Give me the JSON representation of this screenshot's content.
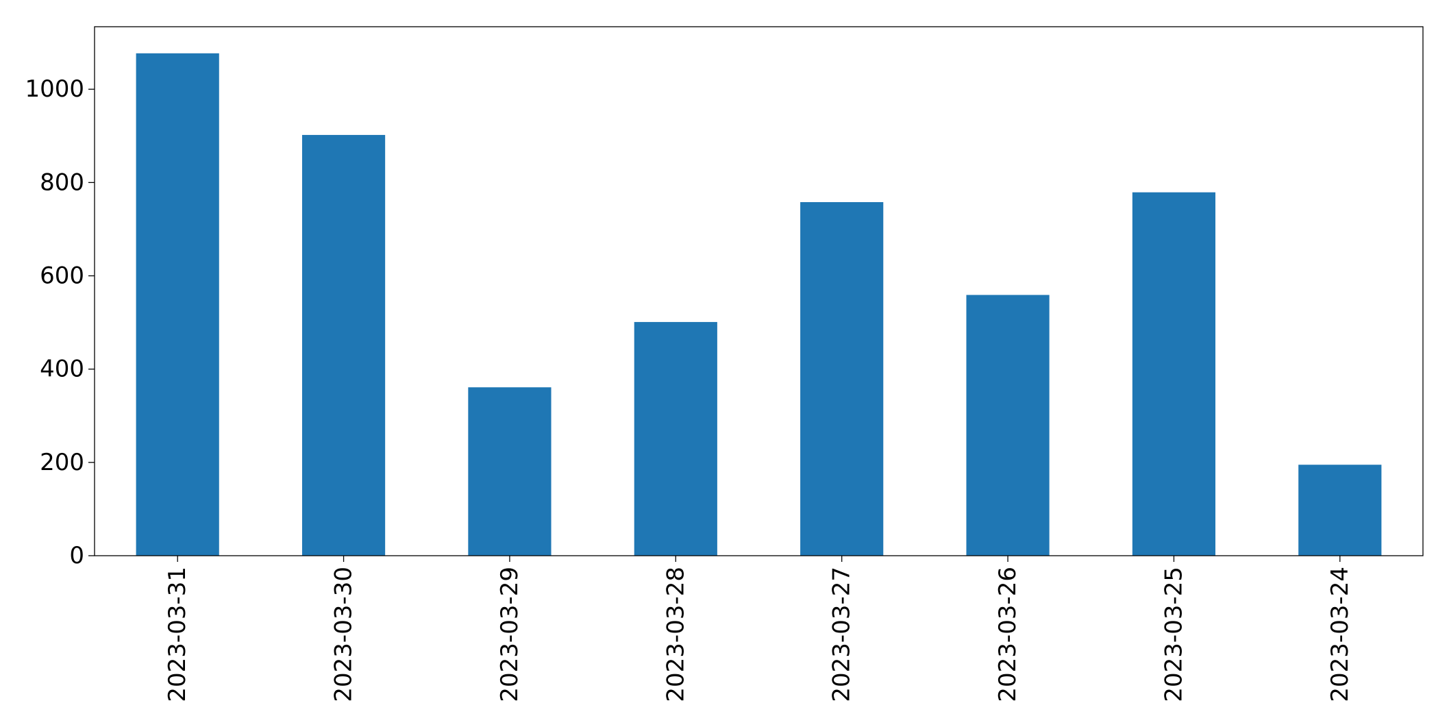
{
  "chart_data": {
    "type": "bar",
    "title": "",
    "xlabel": "",
    "ylabel": "",
    "categories": [
      "2023-03-31",
      "2023-03-30",
      "2023-03-29",
      "2023-03-28",
      "2023-03-27",
      "2023-03-26",
      "2023-03-25",
      "2023-03-24"
    ],
    "values": [
      1077,
      902,
      361,
      501,
      758,
      559,
      779,
      195
    ],
    "ylim": [
      0,
      1134
    ],
    "yticks": [
      0,
      200,
      400,
      600,
      800,
      1000
    ],
    "bar_color": "#1f77b4",
    "grid": false,
    "legend": "none"
  }
}
